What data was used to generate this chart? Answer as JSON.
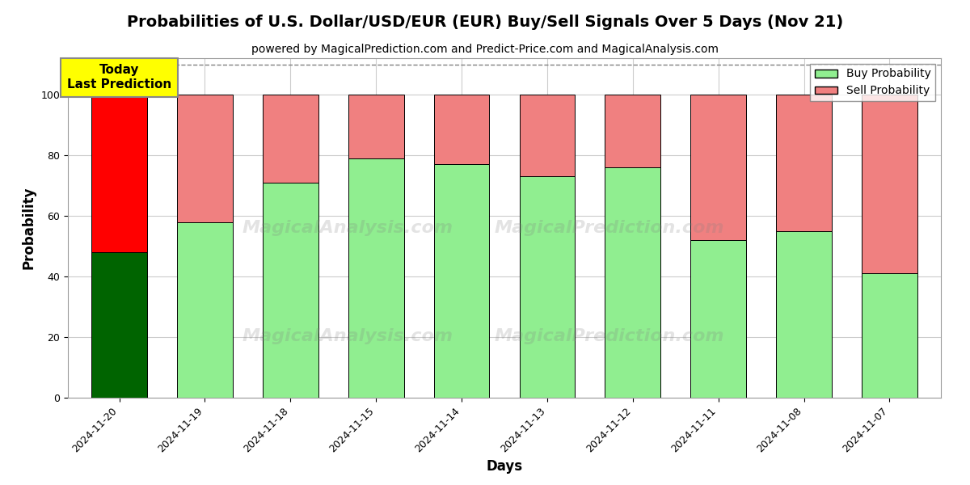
{
  "title": "Probabilities of U.S. Dollar/USD/EUR (EUR) Buy/Sell Signals Over 5 Days (Nov 21)",
  "subtitle": "powered by MagicalPrediction.com and Predict-Price.com and MagicalAnalysis.com",
  "xlabel": "Days",
  "ylabel": "Probability",
  "categories": [
    "2024-11-20",
    "2024-11-19",
    "2024-11-18",
    "2024-11-15",
    "2024-11-14",
    "2024-11-13",
    "2024-11-12",
    "2024-11-11",
    "2024-11-08",
    "2024-11-07"
  ],
  "buy_values": [
    48,
    58,
    71,
    79,
    77,
    73,
    76,
    52,
    55,
    41
  ],
  "sell_values": [
    52,
    42,
    29,
    21,
    23,
    27,
    24,
    48,
    45,
    59
  ],
  "buy_colors": [
    "#006400",
    "#90EE90",
    "#90EE90",
    "#90EE90",
    "#90EE90",
    "#90EE90",
    "#90EE90",
    "#90EE90",
    "#90EE90",
    "#90EE90"
  ],
  "sell_colors": [
    "#FF0000",
    "#F08080",
    "#F08080",
    "#F08080",
    "#F08080",
    "#F08080",
    "#F08080",
    "#F08080",
    "#F08080",
    "#F08080"
  ],
  "today_annotation": "Today\nLast Prediction",
  "legend_buy_label": "Buy Probability",
  "legend_sell_label": "Sell Probability",
  "ylim": [
    0,
    112
  ],
  "dashed_line_y": 110,
  "watermark_text1": "MagicalAnalysis.com",
  "watermark_text2": "MagicalPrediction.com",
  "background_color": "#ffffff",
  "grid_color": "#cccccc",
  "bar_edge_color": "#000000",
  "title_fontsize": 14,
  "subtitle_fontsize": 10,
  "axis_label_fontsize": 12,
  "tick_fontsize": 9
}
